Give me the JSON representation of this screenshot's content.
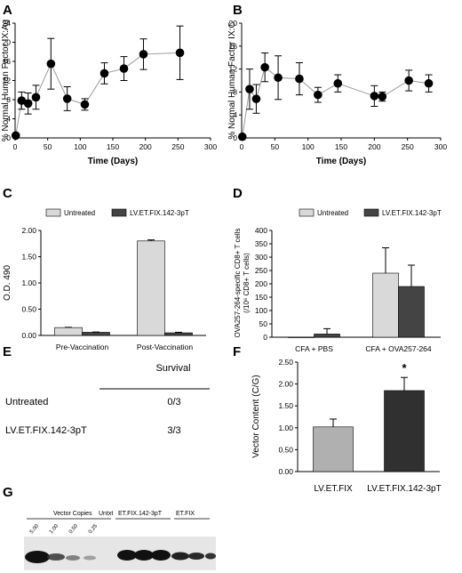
{
  "panels": {
    "A": "A",
    "B": "B",
    "C": "C",
    "D": "D",
    "E": "E",
    "F": "F",
    "G": "G"
  },
  "colors": {
    "line": "#999999",
    "marker": "#000000",
    "bar_untreated": "#d9d9d9",
    "bar_treated": "#444444",
    "bar_f1": "#b0b0b0",
    "bar_f2": "#303030",
    "gel_bg": "#e6e6e6",
    "band": "#1a1a1a"
  },
  "chart_data": [
    {
      "panel": "A",
      "type": "line",
      "ylabel": "% Normal Human Factor IX:Ag",
      "xlabel": "Time (Days)",
      "xlim": [
        0,
        300
      ],
      "ylim": [
        0,
        24
      ],
      "xticks": [
        "0",
        "50",
        "100",
        "150",
        "200",
        "250",
        "300"
      ],
      "yticks": [
        "0",
        "4",
        "8",
        "12",
        "16",
        "20",
        "24"
      ],
      "x": [
        1,
        10,
        20,
        32,
        55,
        80,
        107,
        137,
        167,
        197,
        253
      ],
      "y": [
        0.5,
        7.8,
        7.2,
        8.5,
        15.5,
        8.2,
        7.0,
        13.5,
        14.5,
        17.5,
        17.8
      ],
      "err": [
        0.3,
        1.8,
        2.2,
        2.5,
        5.3,
        2.5,
        1.2,
        2.2,
        2.5,
        3.2,
        5.6
      ]
    },
    {
      "panel": "B",
      "type": "line",
      "ylabel": "% Normal Human Factor IX:C",
      "xlabel": "Time (Days)",
      "xlim": [
        0,
        300
      ],
      "ylim": [
        0,
        20
      ],
      "xticks": [
        "0",
        "50",
        "100",
        "150",
        "200",
        "250",
        "300"
      ],
      "yticks": [
        "0",
        "4",
        "8",
        "12",
        "16",
        "20"
      ],
      "x": [
        1,
        12,
        22,
        35,
        55,
        87,
        115,
        145,
        200,
        212,
        252,
        282
      ],
      "y": [
        0.2,
        8.5,
        6.8,
        12.3,
        10.5,
        10.3,
        7.5,
        9.5,
        7.3,
        7.2,
        10.0,
        9.5
      ],
      "err": [
        0.2,
        3.5,
        2.5,
        2.5,
        3.8,
        2.8,
        1.3,
        1.5,
        1.8,
        0.8,
        1.8,
        1.5
      ]
    },
    {
      "panel": "C",
      "type": "bar",
      "ylabel": "O.D. 490",
      "categories": [
        "Pre-Vaccination",
        "Post-Vaccination"
      ],
      "ylim": [
        0,
        2
      ],
      "yticks": [
        "0.00",
        "0.50",
        "1.00",
        "1.50",
        "2.00"
      ],
      "series": [
        {
          "name": "Untreated",
          "values": [
            0.15,
            1.8
          ],
          "err": [
            0.005,
            0.02
          ]
        },
        {
          "name": "LV.ET.FIX.142-3pT",
          "values": [
            0.06,
            0.05
          ],
          "err": [
            0.005,
            0.01
          ]
        }
      ]
    },
    {
      "panel": "D",
      "type": "bar",
      "ylabel_line1": "OVA257-264-specific CD8+ T cells",
      "ylabel_line2": "(/10⁶ CD8+ T cells)",
      "categories": [
        "CFA + PBS",
        "CFA + OVA257-264"
      ],
      "ylim": [
        0,
        400
      ],
      "yticks": [
        "0",
        "50",
        "100",
        "150",
        "200",
        "250",
        "300",
        "350",
        "400"
      ],
      "series": [
        {
          "name": "Untreated",
          "values": [
            0,
            240
          ],
          "err": [
            0,
            95
          ]
        },
        {
          "name": "LV.ET.FIX.142-3pT",
          "values": [
            12,
            190
          ],
          "err": [
            20,
            80
          ]
        }
      ]
    },
    {
      "panel": "F",
      "type": "bar",
      "ylabel": "Vector Content (C/G)",
      "categories": [
        "LV.ET.FIX",
        "LV.ET.FIX.142-3pT"
      ],
      "values": [
        1.02,
        1.85
      ],
      "err": [
        0.18,
        0.3
      ],
      "ylim": [
        0,
        2.5
      ],
      "yticks": [
        "0.00",
        "0.50",
        "1.00",
        "1.50",
        "2.00",
        "2.50"
      ],
      "annotation": "*"
    }
  ],
  "table_e": {
    "header": "Survival",
    "rows": [
      {
        "label": "Untreated",
        "value": "0/3"
      },
      {
        "label": "LV.ET.FIX.142-3pT",
        "value": "3/3"
      }
    ]
  },
  "gel_g": {
    "group_labels": [
      "Vector Copies",
      "Untxt",
      "ET.FIX.142-3pT",
      "ET.FIX"
    ],
    "copy_labels": [
      "5.00",
      "1.00",
      "0.50",
      "0.25"
    ]
  }
}
